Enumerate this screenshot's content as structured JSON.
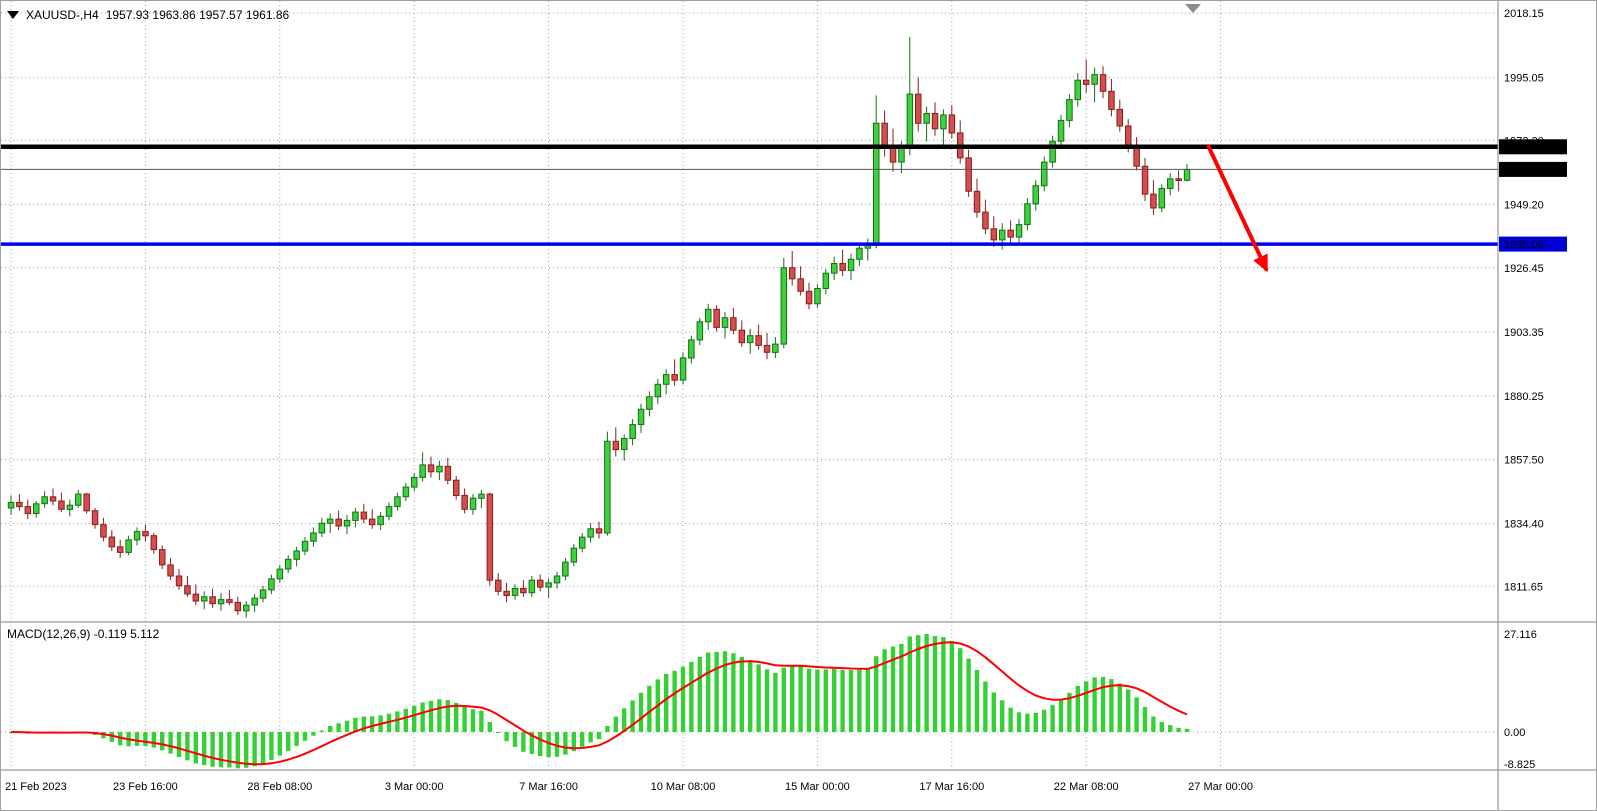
{
  "header": {
    "symbol_period": "XAUUSD-,H4",
    "ohlc": "1957.93 1963.86 1957.57 1961.86"
  },
  "macd_panel": {
    "label": "MACD(12,26,9) -0.119 5.112"
  },
  "price_axis": {
    "labels": [
      "2018.15",
      "1995.05",
      "1972.30",
      "1949.20",
      "1926.45",
      "1903.35",
      "1880.25",
      "1857.50",
      "1834.40",
      "1811.65"
    ],
    "badges": [
      {
        "text": "1970.00",
        "price": 1970.0,
        "bg": "#000000",
        "fg": "#ffffff"
      },
      {
        "text": "1961.86",
        "price": 1961.86,
        "bg": "#000000",
        "fg": "#ffffff"
      },
      {
        "text": "1935.00",
        "price": 1935.0,
        "bg": "#0000d2",
        "fg": "#ffffff"
      }
    ]
  },
  "time_axis": {
    "labels": [
      {
        "text": "21 Feb 2023",
        "bar": 0
      },
      {
        "text": "23 Feb 16:00",
        "bar": 16
      },
      {
        "text": "28 Feb 08:00",
        "bar": 32
      },
      {
        "text": "3 Mar 00:00",
        "bar": 48
      },
      {
        "text": "7 Mar 16:00",
        "bar": 64
      },
      {
        "text": "10 Mar 08:00",
        "bar": 80
      },
      {
        "text": "15 Mar 00:00",
        "bar": 96
      },
      {
        "text": "17 Mar 16:00",
        "bar": 112
      },
      {
        "text": "22 Mar 08:00",
        "bar": 128
      },
      {
        "text": "27 Mar 00:00",
        "bar": 144
      }
    ]
  },
  "macd_axis": {
    "labels": [
      {
        "text": "27.116",
        "value": 27.116
      },
      {
        "text": "0.00",
        "value": 0
      },
      {
        "text": "-8.825",
        "value": -8.825
      }
    ]
  },
  "chart_data": {
    "type": "candlestick",
    "symbol": "XAUUSD-",
    "timeframe": "H4",
    "title": "XAUUSD-,H4 1957.93 1963.86 1957.57 1961.86",
    "current_price": 1961.86,
    "price_gridlines": [
      2018.15,
      1995.05,
      1972.3,
      1949.2,
      1926.45,
      1903.35,
      1880.25,
      1857.5,
      1834.4,
      1811.65
    ],
    "hlines": [
      {
        "price": 1970.0,
        "color": "#000000",
        "width": 4.5,
        "label": "1970.00"
      },
      {
        "price": 1935.0,
        "color": "#0000ee",
        "width": 3.5,
        "label": "1935.00"
      }
    ],
    "arrow": {
      "from_bar": 142.5,
      "from_price": 1970.5,
      "to_bar": 149.5,
      "to_price": 1925.5,
      "color": "#ff0000"
    },
    "macd": {
      "params": [
        12,
        26,
        9
      ],
      "display_values": "-0.119 5.112",
      "axis_max": 27.116,
      "axis_min": -8.825,
      "histogram_color": "#35d035",
      "signal_color": "#ff0000"
    },
    "colors": {
      "bg": "#ffffff",
      "grid": "#9f9f9f",
      "up_fill": "#3fd03f",
      "up_stroke": "#156f15",
      "down_fill": "#d24f4f",
      "down_stroke": "#8a1c1c",
      "current_line": "#555555"
    },
    "candles": [
      [
        1840.0,
        1844.5,
        1837.5,
        1842.0
      ],
      [
        1842.0,
        1845.0,
        1839.0,
        1840.5
      ],
      [
        1840.5,
        1843.0,
        1836.0,
        1838.0
      ],
      [
        1838.0,
        1842.5,
        1836.5,
        1841.5
      ],
      [
        1841.5,
        1846.0,
        1840.0,
        1844.0
      ],
      [
        1844.0,
        1847.0,
        1841.0,
        1842.5
      ],
      [
        1842.5,
        1845.5,
        1838.5,
        1839.5
      ],
      [
        1839.5,
        1843.0,
        1837.0,
        1841.0
      ],
      [
        1841.0,
        1846.5,
        1840.0,
        1845.0
      ],
      [
        1845.0,
        1845.5,
        1838.0,
        1839.0
      ],
      [
        1839.0,
        1840.0,
        1832.5,
        1834.0
      ],
      [
        1834.0,
        1836.5,
        1828.0,
        1829.5
      ],
      [
        1829.5,
        1832.0,
        1824.5,
        1826.0
      ],
      [
        1826.0,
        1828.5,
        1822.0,
        1824.0
      ],
      [
        1824.0,
        1830.0,
        1823.0,
        1828.5
      ],
      [
        1828.5,
        1833.0,
        1826.5,
        1831.5
      ],
      [
        1831.5,
        1834.0,
        1828.0,
        1830.0
      ],
      [
        1830.0,
        1831.0,
        1823.5,
        1825.0
      ],
      [
        1825.0,
        1826.5,
        1818.0,
        1819.5
      ],
      [
        1819.5,
        1822.0,
        1814.0,
        1815.5
      ],
      [
        1815.5,
        1818.0,
        1810.5,
        1812.0
      ],
      [
        1812.0,
        1815.5,
        1808.0,
        1809.0
      ],
      [
        1809.0,
        1812.5,
        1805.0,
        1806.5
      ],
      [
        1806.5,
        1810.0,
        1803.5,
        1808.0
      ],
      [
        1808.0,
        1811.0,
        1804.0,
        1805.5
      ],
      [
        1805.5,
        1809.5,
        1803.0,
        1807.0
      ],
      [
        1807.0,
        1810.5,
        1805.0,
        1806.0
      ],
      [
        1806.0,
        1808.0,
        1801.5,
        1803.0
      ],
      [
        1803.0,
        1806.5,
        1800.5,
        1805.0
      ],
      [
        1805.0,
        1809.0,
        1802.5,
        1807.5
      ],
      [
        1807.5,
        1812.0,
        1806.0,
        1810.5
      ],
      [
        1810.5,
        1816.0,
        1809.0,
        1814.5
      ],
      [
        1814.5,
        1819.5,
        1813.0,
        1818.0
      ],
      [
        1818.0,
        1823.0,
        1816.5,
        1821.5
      ],
      [
        1821.5,
        1826.0,
        1819.0,
        1824.5
      ],
      [
        1824.5,
        1829.5,
        1823.0,
        1828.0
      ],
      [
        1828.0,
        1833.0,
        1826.0,
        1831.0
      ],
      [
        1831.0,
        1836.5,
        1829.5,
        1834.5
      ],
      [
        1834.5,
        1838.0,
        1831.0,
        1836.0
      ],
      [
        1836.0,
        1839.0,
        1832.0,
        1833.5
      ],
      [
        1833.5,
        1837.5,
        1830.5,
        1835.5
      ],
      [
        1835.5,
        1840.0,
        1833.0,
        1838.5
      ],
      [
        1838.5,
        1841.5,
        1834.5,
        1836.0
      ],
      [
        1836.0,
        1839.5,
        1832.5,
        1834.0
      ],
      [
        1834.0,
        1838.5,
        1832.0,
        1837.0
      ],
      [
        1837.0,
        1842.0,
        1835.5,
        1840.5
      ],
      [
        1840.5,
        1845.5,
        1839.0,
        1844.0
      ],
      [
        1844.0,
        1849.0,
        1842.5,
        1847.5
      ],
      [
        1847.5,
        1852.5,
        1846.0,
        1851.0
      ],
      [
        1851.0,
        1860.0,
        1849.5,
        1855.5
      ],
      [
        1855.5,
        1858.5,
        1851.0,
        1853.0
      ],
      [
        1853.0,
        1857.0,
        1850.0,
        1855.0
      ],
      [
        1855.0,
        1858.0,
        1848.5,
        1850.0
      ],
      [
        1850.0,
        1851.5,
        1843.0,
        1844.5
      ],
      [
        1844.5,
        1847.0,
        1838.0,
        1839.5
      ],
      [
        1839.5,
        1845.0,
        1837.5,
        1843.5
      ],
      [
        1843.5,
        1846.5,
        1840.0,
        1845.0
      ],
      [
        1845.0,
        1845.5,
        1812.0,
        1814.0
      ],
      [
        1814.0,
        1816.5,
        1808.5,
        1810.0
      ],
      [
        1810.0,
        1813.0,
        1806.0,
        1808.5
      ],
      [
        1808.5,
        1812.5,
        1807.0,
        1811.0
      ],
      [
        1811.0,
        1814.0,
        1808.0,
        1809.5
      ],
      [
        1809.5,
        1815.5,
        1808.0,
        1814.0
      ],
      [
        1814.0,
        1816.0,
        1810.0,
        1811.5
      ],
      [
        1811.5,
        1814.5,
        1807.5,
        1813.0
      ],
      [
        1813.0,
        1817.0,
        1811.0,
        1815.5
      ],
      [
        1815.5,
        1822.0,
        1814.0,
        1820.5
      ],
      [
        1820.5,
        1827.0,
        1819.0,
        1825.5
      ],
      [
        1825.5,
        1831.0,
        1824.0,
        1829.5
      ],
      [
        1829.5,
        1834.5,
        1827.5,
        1832.5
      ],
      [
        1832.5,
        1835.0,
        1829.0,
        1831.0
      ],
      [
        1831.0,
        1867.5,
        1830.0,
        1864.0
      ],
      [
        1864.0,
        1869.0,
        1858.5,
        1861.0
      ],
      [
        1861.0,
        1866.5,
        1857.0,
        1865.0
      ],
      [
        1865.0,
        1872.0,
        1862.5,
        1870.0
      ],
      [
        1870.0,
        1877.5,
        1867.0,
        1875.5
      ],
      [
        1875.5,
        1882.0,
        1873.0,
        1880.0
      ],
      [
        1880.0,
        1886.5,
        1877.5,
        1884.5
      ],
      [
        1884.5,
        1890.0,
        1881.0,
        1888.0
      ],
      [
        1888.0,
        1893.5,
        1884.0,
        1886.0
      ],
      [
        1886.0,
        1896.0,
        1884.5,
        1894.0
      ],
      [
        1894.0,
        1902.0,
        1892.0,
        1900.5
      ],
      [
        1900.5,
        1908.5,
        1898.5,
        1907.0
      ],
      [
        1907.0,
        1913.5,
        1904.0,
        1911.5
      ],
      [
        1911.5,
        1913.0,
        1903.5,
        1905.0
      ],
      [
        1905.0,
        1910.5,
        1901.0,
        1908.5
      ],
      [
        1908.5,
        1912.0,
        1902.5,
        1904.0
      ],
      [
        1904.0,
        1907.5,
        1898.0,
        1899.5
      ],
      [
        1899.5,
        1904.5,
        1895.5,
        1902.0
      ],
      [
        1902.0,
        1906.0,
        1897.0,
        1898.5
      ],
      [
        1898.5,
        1903.0,
        1893.5,
        1896.0
      ],
      [
        1896.0,
        1901.5,
        1894.0,
        1899.0
      ],
      [
        1899.0,
        1930.0,
        1897.5,
        1926.5
      ],
      [
        1926.5,
        1932.5,
        1920.0,
        1922.5
      ],
      [
        1922.5,
        1927.0,
        1916.5,
        1918.0
      ],
      [
        1918.0,
        1921.0,
        1911.5,
        1913.5
      ],
      [
        1913.5,
        1920.5,
        1912.0,
        1919.0
      ],
      [
        1919.0,
        1926.0,
        1917.0,
        1924.5
      ],
      [
        1924.5,
        1930.5,
        1922.0,
        1928.0
      ],
      [
        1928.0,
        1933.0,
        1923.5,
        1925.5
      ],
      [
        1925.5,
        1931.5,
        1922.0,
        1929.5
      ],
      [
        1929.5,
        1935.5,
        1927.0,
        1933.5
      ],
      [
        1933.5,
        1937.0,
        1929.0,
        1934.5
      ],
      [
        1934.5,
        1988.5,
        1933.5,
        1978.5
      ],
      [
        1978.5,
        1983.0,
        1966.5,
        1970.0
      ],
      [
        1970.0,
        1976.5,
        1961.0,
        1964.5
      ],
      [
        1964.5,
        1972.0,
        1960.5,
        1969.5
      ],
      [
        1969.5,
        2009.5,
        1967.0,
        1989.0
      ],
      [
        1989.0,
        1995.0,
        1975.5,
        1978.5
      ],
      [
        1978.5,
        1984.5,
        1972.0,
        1982.0
      ],
      [
        1982.0,
        1986.0,
        1974.0,
        1976.5
      ],
      [
        1976.5,
        1983.5,
        1970.5,
        1981.5
      ],
      [
        1981.5,
        1985.0,
        1973.0,
        1975.0
      ],
      [
        1975.0,
        1979.5,
        1964.0,
        1966.0
      ],
      [
        1966.0,
        1969.0,
        1952.0,
        1954.0
      ],
      [
        1954.0,
        1958.5,
        1944.5,
        1946.5
      ],
      [
        1946.5,
        1951.0,
        1938.5,
        1940.5
      ],
      [
        1940.5,
        1945.0,
        1934.0,
        1936.5
      ],
      [
        1936.5,
        1942.5,
        1933.0,
        1940.0
      ],
      [
        1940.0,
        1943.5,
        1935.5,
        1937.5
      ],
      [
        1937.5,
        1944.0,
        1934.5,
        1942.0
      ],
      [
        1942.0,
        1951.5,
        1940.0,
        1949.5
      ],
      [
        1949.5,
        1958.0,
        1947.0,
        1956.0
      ],
      [
        1956.0,
        1966.5,
        1954.0,
        1964.5
      ],
      [
        1964.5,
        1974.0,
        1962.5,
        1972.0
      ],
      [
        1972.0,
        1981.5,
        1970.0,
        1979.5
      ],
      [
        1979.5,
        1989.0,
        1977.0,
        1987.0
      ],
      [
        1987.0,
        1996.5,
        1984.5,
        1994.0
      ],
      [
        1994.0,
        2001.5,
        1989.5,
        1992.5
      ],
      [
        1992.5,
        1998.5,
        1986.0,
        1996.0
      ],
      [
        1996.0,
        1999.0,
        1987.5,
        1990.0
      ],
      [
        1990.0,
        1994.5,
        1981.0,
        1983.5
      ],
      [
        1983.5,
        1987.0,
        1975.5,
        1977.5
      ],
      [
        1977.5,
        1980.0,
        1968.0,
        1970.5
      ],
      [
        1970.5,
        1973.5,
        1961.5,
        1963.0
      ],
      [
        1963.0,
        1966.0,
        1950.5,
        1953.0
      ],
      [
        1953.0,
        1958.0,
        1945.5,
        1948.0
      ],
      [
        1948.0,
        1956.5,
        1946.5,
        1955.0
      ],
      [
        1955.0,
        1960.5,
        1952.5,
        1958.5
      ],
      [
        1958.5,
        1961.5,
        1954.0,
        1957.9
      ],
      [
        1957.93,
        1963.86,
        1957.57,
        1961.86
      ]
    ]
  }
}
